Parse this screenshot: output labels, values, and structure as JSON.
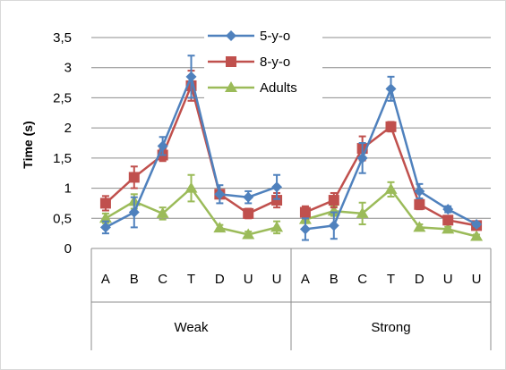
{
  "chart_data": {
    "type": "line",
    "ylabel": "Time (s)",
    "ylim": [
      0,
      3.5
    ],
    "ytick_step": 0.5,
    "ytick_labels": [
      "0",
      "0,5",
      "1",
      "1,5",
      "2",
      "2,5",
      "3",
      "3,5"
    ],
    "grid": true,
    "legend_position": "top-center",
    "groups": [
      {
        "label": "Weak",
        "categories": [
          "A",
          "B",
          "C",
          "T",
          "D",
          "U",
          "U"
        ]
      },
      {
        "label": "Strong",
        "categories": [
          "A",
          "B",
          "C",
          "T",
          "D",
          "U",
          "U"
        ]
      }
    ],
    "series": [
      {
        "name": "5-y-o",
        "color": "#4F81BD",
        "marker": "diamond",
        "groups": [
          {
            "values": [
              0.35,
              0.6,
              1.7,
              2.85,
              0.9,
              0.85,
              1.02
            ],
            "errors": [
              0.1,
              0.25,
              0.15,
              0.35,
              0.15,
              0.1,
              0.2
            ]
          },
          {
            "values": [
              0.32,
              0.38,
              1.5,
              2.65,
              0.95,
              0.65,
              0.4
            ],
            "errors": [
              0.18,
              0.22,
              0.25,
              0.2,
              0.12,
              0.05,
              0.03
            ]
          }
        ]
      },
      {
        "name": "8-y-o",
        "color": "#C0504D",
        "marker": "square",
        "groups": [
          {
            "values": [
              0.75,
              1.18,
              1.55,
              2.7,
              0.9,
              0.58,
              0.8
            ],
            "errors": [
              0.12,
              0.18,
              0.1,
              0.25,
              0.05,
              0.08,
              0.12
            ]
          },
          {
            "values": [
              0.6,
              0.8,
              1.66,
              2.02,
              0.73,
              0.47,
              0.38
            ],
            "errors": [
              0.1,
              0.12,
              0.2,
              0.08,
              0.08,
              0.05,
              0.02
            ]
          }
        ]
      },
      {
        "name": "Adults",
        "color": "#9BBB59",
        "marker": "triangle",
        "groups": [
          {
            "values": [
              0.5,
              0.78,
              0.58,
              1.0,
              0.34,
              0.23,
              0.35
            ],
            "errors": [
              0.08,
              0.12,
              0.1,
              0.22,
              0.05,
              0.05,
              0.1
            ]
          },
          {
            "values": [
              0.48,
              0.62,
              0.58,
              0.98,
              0.35,
              0.32,
              0.2
            ],
            "errors": [
              0.06,
              0.08,
              0.18,
              0.12,
              0.05,
              0.04,
              0.03
            ]
          }
        ]
      }
    ]
  }
}
